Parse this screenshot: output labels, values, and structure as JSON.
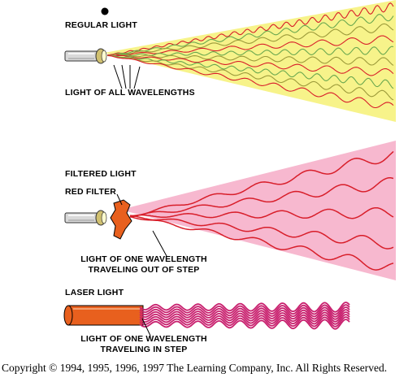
{
  "panels": {
    "regular": {
      "title": "REGULAR LIGHT",
      "caption": "LIGHT OF ALL WAVELENGTHS"
    },
    "filtered": {
      "title": "FILTERED LIGHT",
      "filter_label": "RED FILTER",
      "caption_line1": "LIGHT OF ONE WAVELENGTH",
      "caption_line2": "TRAVELING OUT OF STEP"
    },
    "laser": {
      "title": "LASER LIGHT",
      "caption_line1": "LIGHT OF ONE WAVELENGTH",
      "caption_line2": "TRAVELING IN STEP"
    }
  },
  "copyright": "Copyright © 1994, 1995, 1996, 1997 The Learning Company, Inc. All Rights Reserved.",
  "colors": {
    "regular_beam": "#f7f38a",
    "filtered_beam": "#f7b8cf",
    "filter": "#e8601e",
    "laser_tube": "#e8601e",
    "laser_beam": "#c8206e",
    "wave_red": "#d81e2a",
    "wave_green": "#6aa84f",
    "wave_olive": "#9c9a3a"
  }
}
